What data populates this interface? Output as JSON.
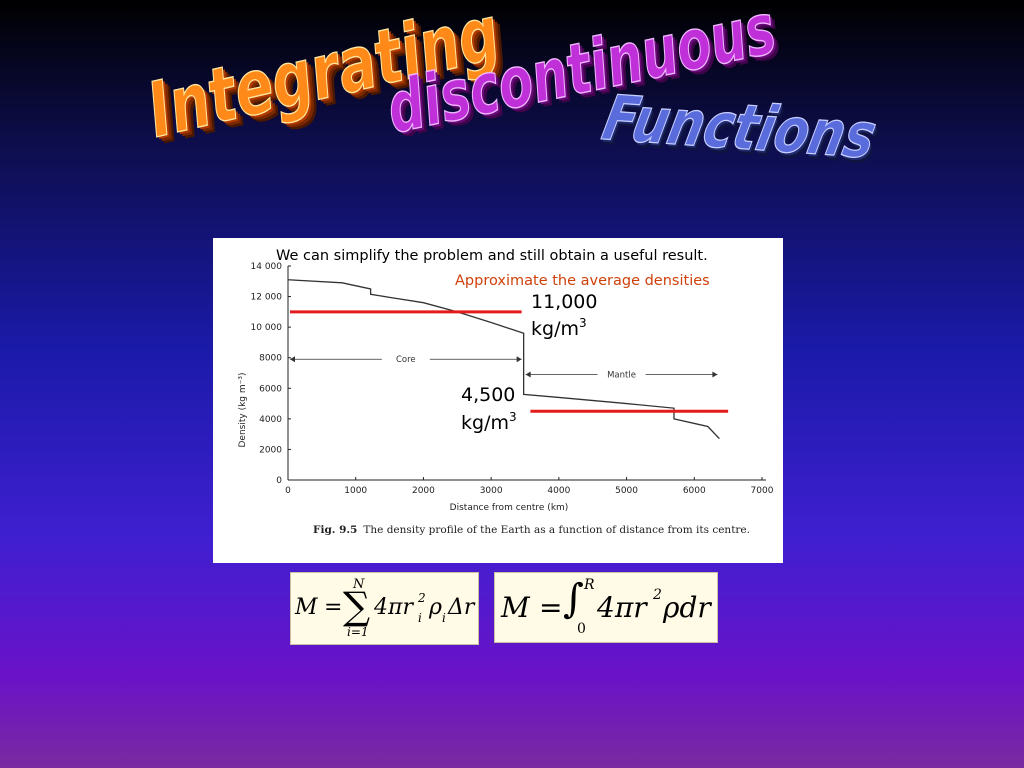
{
  "title": {
    "word1": "Integrating",
    "word2": "discontinuous",
    "word3": "Functions"
  },
  "slide": {
    "intro": "We can simplify the problem and still obtain a useful result.",
    "instruction": "Approximate the average densities",
    "core_density": {
      "value": "11,000",
      "unit": "kg/m",
      "sup": "3",
      "level": 11000
    },
    "mantle_density": {
      "value": "4,500",
      "unit": "kg/m",
      "sup": "3",
      "level": 4500
    },
    "accent_color": "#e31b1b",
    "instruction_color": "#d0400a"
  },
  "chart_data": {
    "type": "line",
    "ylabel": "Density (kg m⁻³)",
    "xlabel": "Distance from centre (km)",
    "caption_label": "Fig. 9.5",
    "caption_text": "The density profile of the Earth as a function of distance from its centre.",
    "xlim": [
      0,
      7000
    ],
    "ylim": [
      0,
      14000
    ],
    "x_ticks": [
      0,
      1000,
      2000,
      3000,
      4000,
      5000,
      6000,
      7000
    ],
    "x_tick_labels": [
      "0",
      "1000",
      "2000",
      "3000",
      "4000",
      "5000",
      "6000",
      "7000"
    ],
    "y_ticks": [
      0,
      2000,
      4000,
      6000,
      8000,
      10000,
      12000,
      14000
    ],
    "y_tick_labels": [
      "0",
      "2000",
      "4000",
      "6000",
      "8000",
      "10 000",
      "12 000",
      "14 000"
    ],
    "series": [
      {
        "x": [
          0,
          800,
          1220,
          1220,
          1500,
          2000,
          2500,
          3000,
          3480,
          3480,
          4000,
          5000,
          5700,
          5700,
          6000,
          6200,
          6371
        ],
        "y": [
          13100,
          12900,
          12500,
          12150,
          11950,
          11600,
          11000,
          10300,
          9600,
          5600,
          5400,
          5000,
          4700,
          4000,
          3700,
          3500,
          2700
        ]
      }
    ],
    "regions": [
      {
        "label": "Core",
        "from": 0,
        "to": 3480,
        "y": 7900
      },
      {
        "label": "Mantle",
        "from": 3480,
        "to": 6371,
        "y": 6900
      }
    ],
    "legend": "none",
    "grid": false
  },
  "equations": {
    "sum": {
      "lhs": "M",
      "eq": "=",
      "sigma": "∑",
      "upper": "N",
      "lower": "i=1",
      "term": "4πr",
      "r_sup": "2",
      "r_sub": "i",
      "rho": "ρ",
      "rho_sub": "i",
      "delta": "Δr"
    },
    "integral": {
      "lhs": "M",
      "eq": "=",
      "int": "∫",
      "upper": "R",
      "lower": "0",
      "term": "4πr",
      "r_sup": "2",
      "tail": "ρdr"
    }
  }
}
